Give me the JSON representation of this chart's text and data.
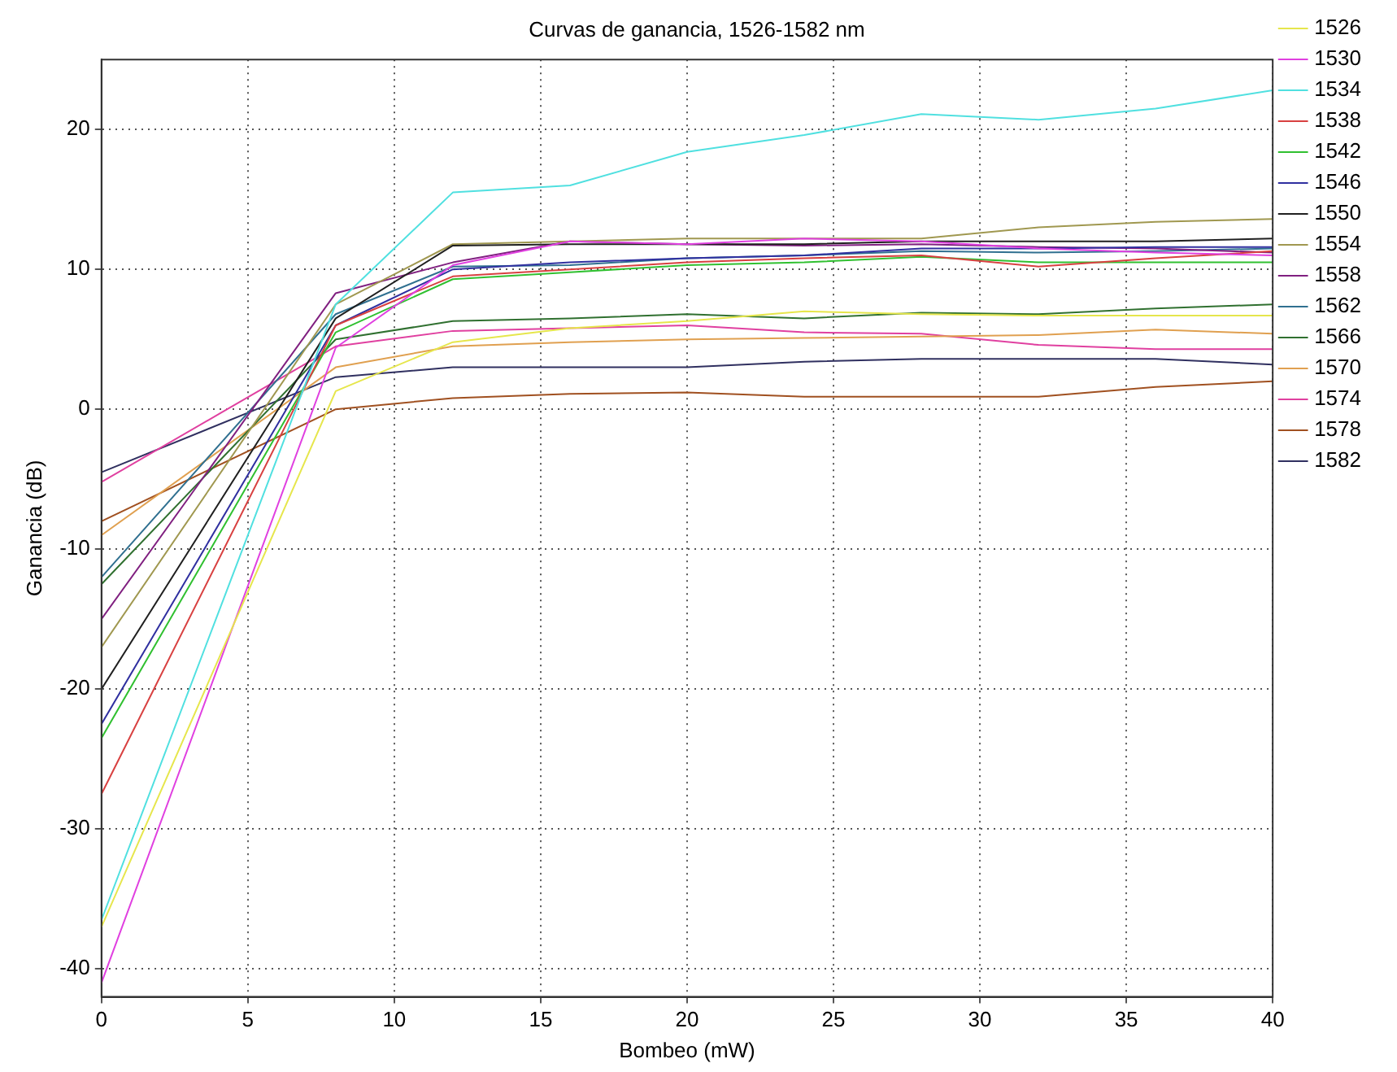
{
  "chart_data": {
    "type": "line",
    "title": "Curvas de ganancia, 1526-1582 nm",
    "xlabel": "Bombeo (mW)",
    "ylabel": "Ganancia (dB)",
    "x": [
      0,
      8,
      12,
      16,
      20,
      24,
      28,
      32,
      36,
      40
    ],
    "xlim": [
      0,
      40
    ],
    "xticks": [
      0,
      5,
      10,
      15,
      20,
      25,
      30,
      35,
      40
    ],
    "ylim": [
      -42,
      25
    ],
    "yticks": [
      -40,
      -30,
      -20,
      -10,
      0,
      10,
      20
    ],
    "grid": true,
    "legend": "top right",
    "marker": "none",
    "line_style": "solid",
    "series": [
      {
        "name": "1526",
        "color": "#e6e64c",
        "values": [
          -37,
          1.3,
          4.8,
          5.8,
          6.3,
          7.0,
          6.8,
          6.7,
          6.7,
          6.7
        ]
      },
      {
        "name": "1530",
        "color": "#e040e0",
        "values": [
          -41,
          4.4,
          10.3,
          12,
          11.8,
          12.2,
          12,
          11.5,
          11.2,
          11
        ]
      },
      {
        "name": "1534",
        "color": "#50e0e0",
        "values": [
          -36.5,
          7.5,
          15.5,
          16,
          18.4,
          19.6,
          21.1,
          20.7,
          21.5,
          22.8
        ]
      },
      {
        "name": "1538",
        "color": "#d84040",
        "values": [
          -27.5,
          6,
          9.5,
          10,
          10.5,
          10.8,
          11,
          10.2,
          10.8,
          11.3
        ]
      },
      {
        "name": "1542",
        "color": "#30c030",
        "values": [
          -23.5,
          5.5,
          9.3,
          9.8,
          10.3,
          10.5,
          10.9,
          10.5,
          10.5,
          10.5
        ]
      },
      {
        "name": "1546",
        "color": "#3030a0",
        "values": [
          -22.5,
          6,
          10,
          10.5,
          10.8,
          11,
          11.5,
          11.5,
          11.6,
          11.6
        ]
      },
      {
        "name": "1550",
        "color": "#202020",
        "values": [
          -20,
          6.5,
          11.7,
          11.8,
          11.8,
          11.8,
          12,
          12,
          12,
          12.2
        ]
      },
      {
        "name": "1554",
        "color": "#a09850",
        "values": [
          -17,
          7.5,
          11.8,
          12,
          12.2,
          12.2,
          12.2,
          13,
          13.4,
          13.6
        ]
      },
      {
        "name": "1558",
        "color": "#802080",
        "values": [
          -15,
          8.3,
          10.5,
          12,
          11.8,
          11.7,
          11.8,
          11.6,
          11.5,
          11.2
        ]
      },
      {
        "name": "1562",
        "color": "#307090",
        "values": [
          -12,
          6.8,
          10.2,
          10.3,
          10.8,
          11,
          11.3,
          11.2,
          11.3,
          11.5
        ]
      },
      {
        "name": "1566",
        "color": "#307030",
        "values": [
          -12.5,
          5,
          6.3,
          6.5,
          6.8,
          6.5,
          6.9,
          6.8,
          7.2,
          7.5
        ]
      },
      {
        "name": "1570",
        "color": "#e0a050",
        "values": [
          -9,
          3,
          4.5,
          4.8,
          5,
          5.1,
          5.2,
          5.3,
          5.7,
          5.4
        ]
      },
      {
        "name": "1574",
        "color": "#e040a0",
        "values": [
          -5.2,
          4.5,
          5.6,
          5.8,
          6,
          5.5,
          5.4,
          4.6,
          4.3,
          4.3
        ]
      },
      {
        "name": "1578",
        "color": "#a05020",
        "values": [
          -8,
          0,
          0.8,
          1.1,
          1.2,
          0.9,
          0.9,
          0.9,
          1.6,
          2
        ]
      },
      {
        "name": "1582",
        "color": "#303060",
        "values": [
          -4.5,
          2.3,
          3,
          3,
          3,
          3.4,
          3.6,
          3.6,
          3.6,
          3.2
        ]
      }
    ]
  }
}
